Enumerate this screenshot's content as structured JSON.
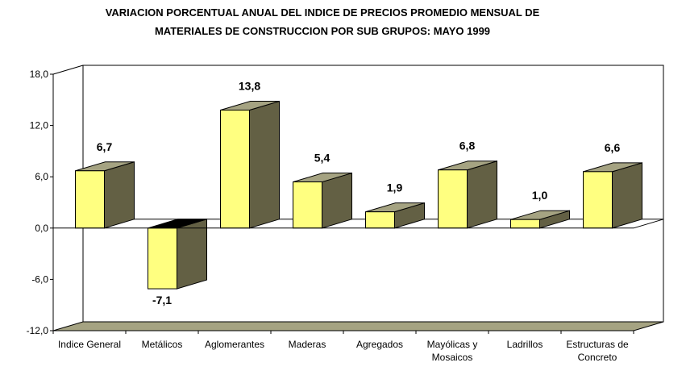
{
  "chart_data": {
    "type": "bar",
    "style": "3d-column",
    "title_line1": "VARIACION PORCENTUAL ANUAL DEL INDICE DE PRECIOS PROMEDIO MENSUAL DE",
    "title_line2": "MATERIALES DE CONSTRUCCION POR SUB GRUPOS: MAYO 1999",
    "xlabel": "",
    "ylabel": "",
    "ylim": [
      -12.0,
      18.0
    ],
    "yticks": [
      18.0,
      12.0,
      6.0,
      0.0,
      -6.0,
      -12.0
    ],
    "ytick_labels": [
      "18,0",
      "12,0",
      "6,0",
      "0,0",
      "-6,0",
      "-12,0"
    ],
    "categories": [
      [
        "Indice General"
      ],
      [
        "Metálicos"
      ],
      [
        "Aglomerantes"
      ],
      [
        "Maderas"
      ],
      [
        "Agregados"
      ],
      [
        "Mayólicas y",
        "Mosaicos"
      ],
      [
        "Ladrillos"
      ],
      [
        "Estructuras de",
        "Concreto"
      ]
    ],
    "values": [
      6.7,
      -7.1,
      13.8,
      5.4,
      1.9,
      6.8,
      1.0,
      6.6
    ],
    "value_labels": [
      "6,7",
      "-7,1",
      "13,8",
      "5,4",
      "1,9",
      "6,8",
      "1,0",
      "6,6"
    ],
    "grid": false,
    "legend": "none",
    "colors": {
      "bar_front": "#ffff80",
      "bar_side": "#636044",
      "bar_top": "#a5a382",
      "bar_top_negative": "#000000",
      "floor": "#a5a382",
      "line": "#000000"
    }
  }
}
